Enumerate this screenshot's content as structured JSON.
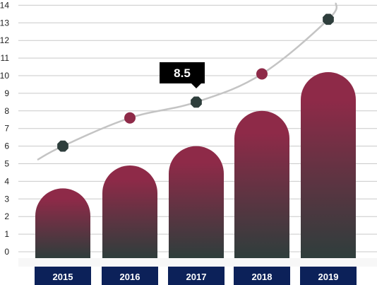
{
  "chart_data": {
    "type": "bar",
    "categories": [
      "2015",
      "2016",
      "2017",
      "2018",
      "2019"
    ],
    "bar_values": [
      3.6,
      4.9,
      6.0,
      8.0,
      10.2
    ],
    "line_points": [
      6.0,
      7.6,
      8.5,
      10.1,
      13.2
    ],
    "y_ticks": [
      "0",
      "1",
      "2",
      "3",
      "4",
      "5",
      "6",
      "7",
      "8",
      "9",
      "10",
      "11",
      "12",
      "13",
      "14"
    ],
    "ylim": [
      0,
      14
    ],
    "grid": true,
    "callout": {
      "category_index": 2,
      "label": "8.5"
    },
    "colors": {
      "bar_top": "#8e2a48",
      "bar_bottom": "#2e3e3c",
      "marker_dark": "#2e3e3c",
      "marker_red": "#8e2a48",
      "line": "#c4c4c4",
      "grid": "#c9c9c9",
      "category_box": "#0c2159",
      "callout_bg": "#000000"
    }
  }
}
